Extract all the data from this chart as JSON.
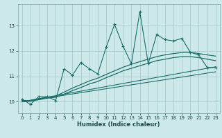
{
  "title": "",
  "xlabel": "Humidex (Indice chaleur)",
  "bg_color": "#cce8e8",
  "grid_color": "#aacccc",
  "line_color": "#1a6e6a",
  "xlim": [
    -0.5,
    23.5
  ],
  "ylim": [
    9.55,
    13.85
  ],
  "yticks": [
    10,
    11,
    12,
    13
  ],
  "xticks": [
    0,
    1,
    2,
    3,
    4,
    5,
    6,
    7,
    8,
    9,
    10,
    11,
    12,
    13,
    14,
    15,
    16,
    17,
    18,
    19,
    20,
    21,
    22,
    23
  ],
  "series_jagged": {
    "x": [
      0,
      1,
      2,
      3,
      4,
      5,
      6,
      7,
      8,
      9,
      10,
      11,
      12,
      13,
      14,
      15,
      16,
      17,
      18,
      19,
      20,
      21,
      22,
      23
    ],
    "y": [
      10.1,
      9.9,
      10.2,
      10.2,
      10.05,
      11.3,
      11.05,
      11.55,
      11.3,
      11.1,
      12.15,
      13.05,
      12.2,
      11.5,
      13.55,
      11.5,
      12.65,
      12.45,
      12.4,
      12.5,
      11.95,
      11.85,
      11.35,
      11.35
    ]
  },
  "series_smooth_upper": {
    "x": [
      0,
      1,
      2,
      3,
      4,
      5,
      6,
      7,
      8,
      9,
      10,
      11,
      12,
      13,
      14,
      15,
      16,
      17,
      18,
      19,
      20,
      21,
      22,
      23
    ],
    "y": [
      10.05,
      10.05,
      10.12,
      10.18,
      10.22,
      10.38,
      10.54,
      10.68,
      10.82,
      10.93,
      11.08,
      11.22,
      11.36,
      11.48,
      11.58,
      11.68,
      11.78,
      11.85,
      11.9,
      11.94,
      11.95,
      11.9,
      11.85,
      11.8
    ]
  },
  "series_smooth_lower": {
    "x": [
      0,
      1,
      2,
      3,
      4,
      5,
      6,
      7,
      8,
      9,
      10,
      11,
      12,
      13,
      14,
      15,
      16,
      17,
      18,
      19,
      20,
      21,
      22,
      23
    ],
    "y": [
      10.0,
      10.02,
      10.08,
      10.14,
      10.18,
      10.3,
      10.44,
      10.56,
      10.7,
      10.8,
      10.95,
      11.08,
      11.22,
      11.32,
      11.42,
      11.52,
      11.62,
      11.68,
      11.74,
      11.78,
      11.78,
      11.74,
      11.68,
      11.62
    ]
  },
  "series_linear1": {
    "x": [
      0,
      23
    ],
    "y": [
      10.0,
      11.38
    ]
  },
  "series_linear2": {
    "x": [
      0,
      23
    ],
    "y": [
      10.0,
      11.18
    ]
  }
}
